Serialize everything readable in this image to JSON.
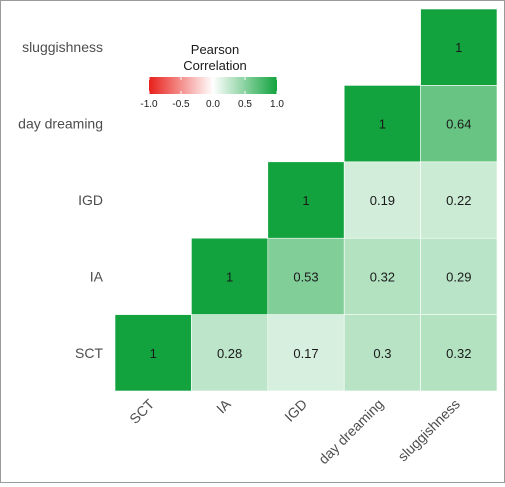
{
  "chart_data": {
    "type": "heatmap",
    "variables": [
      "SCT",
      "IA",
      "IGD",
      "day dreaming",
      "sluggishness"
    ],
    "values": [
      [
        1,
        null,
        null,
        null,
        null
      ],
      [
        0.28,
        1,
        null,
        null,
        null
      ],
      [
        0.17,
        0.53,
        1,
        null,
        null
      ],
      [
        0.3,
        0.32,
        0.19,
        1,
        null
      ],
      [
        0.32,
        0.29,
        0.22,
        0.64,
        1
      ]
    ],
    "triangle": "lower",
    "legend": {
      "title": "Pearson\nCorrelation",
      "title_lines": [
        "Pearson",
        "Correlation"
      ],
      "ticks": [
        "-1.0",
        "-0.5",
        "0.0",
        "0.5",
        "1.0"
      ],
      "range": [
        -1,
        1
      ],
      "placement": "top-left"
    },
    "colors": {
      "low": "#e8201b",
      "mid": "#ffffff",
      "high": "#12a33e"
    },
    "grid": false
  }
}
